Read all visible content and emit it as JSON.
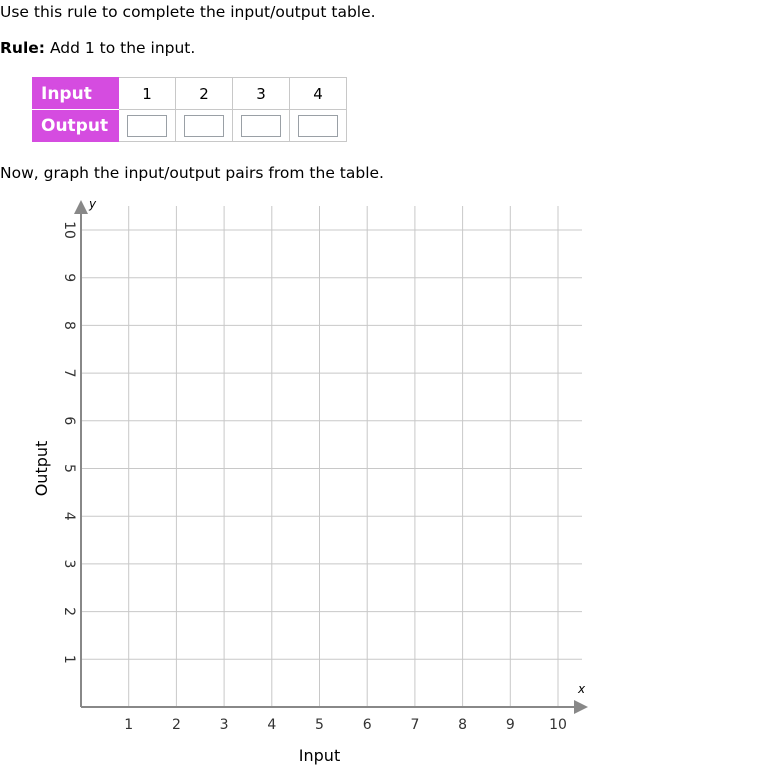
{
  "instructions": "Use this rule to complete the input/output table.",
  "rule": {
    "label": "Rule:",
    "text": "Add 1 to the input."
  },
  "table": {
    "input_header": "Input",
    "output_header": "Output",
    "inputs": [
      "1",
      "2",
      "3",
      "4"
    ],
    "outputs": [
      "",
      "",
      "",
      ""
    ]
  },
  "graph_prompt": "Now, graph the input/output pairs from the table.",
  "chart_data": {
    "type": "scatter",
    "xlabel": "Input",
    "ylabel": "Output",
    "x_axis_letter": "x",
    "y_axis_letter": "y",
    "xlim": [
      0,
      10
    ],
    "ylim": [
      0,
      10
    ],
    "x_ticks": [
      "1",
      "2",
      "3",
      "4",
      "5",
      "6",
      "7",
      "8",
      "9",
      "10"
    ],
    "y_ticks": [
      "1",
      "2",
      "3",
      "4",
      "5",
      "6",
      "7",
      "8",
      "9",
      "10"
    ],
    "grid": true,
    "points": []
  }
}
